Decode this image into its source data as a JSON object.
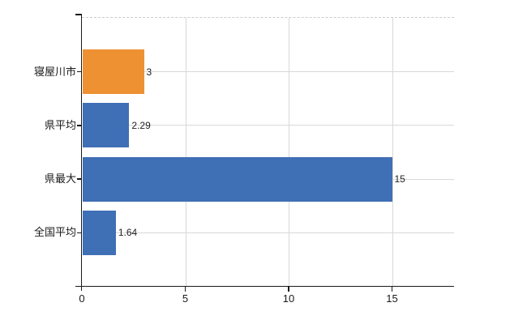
{
  "chart_data": {
    "type": "bar",
    "orientation": "horizontal",
    "title": "",
    "categories": [
      "寝屋川市",
      "県平均",
      "県最大",
      "全国平均"
    ],
    "values": [
      3,
      2.29,
      15,
      1.64
    ],
    "value_labels": [
      "3",
      "2.29",
      "15",
      "1.64"
    ],
    "bar_colors": [
      "#ee9133",
      "#3f6fb5",
      "#3f6fb5",
      "#3f6fb5"
    ],
    "xlim": [
      0,
      18
    ],
    "xticks": [
      0,
      5,
      10,
      15
    ],
    "xtick_labels": [
      "0",
      "5",
      "10",
      "15"
    ],
    "grid": true,
    "legend": false,
    "colors": {
      "highlight_bar": "#ee9133",
      "default_bar": "#3f6fb5",
      "gridline": "#d8d8d8",
      "top_border": "#cccccc",
      "axis": "#1a1a1a",
      "value_label": "#222222",
      "tick_label": "#1a1a1a"
    }
  }
}
